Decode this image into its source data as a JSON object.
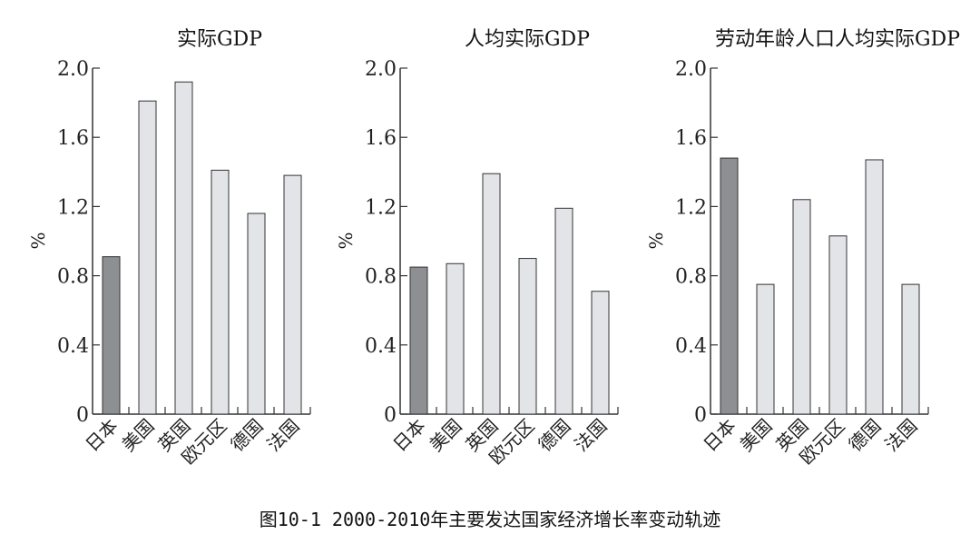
{
  "caption": "图10-1 2000-2010年主要发达国家经济增长率变动轨迹",
  "colors": {
    "japan": "#8e8f93",
    "others": "#e3e4e8",
    "outline": "#333333"
  },
  "chart_data": [
    {
      "type": "bar",
      "title": "实际GDP",
      "ylabel": "%",
      "ylim": [
        0,
        2.0
      ],
      "yticks": [
        "0",
        "0.4",
        "0.8",
        "1.2",
        "1.6",
        "2.0"
      ],
      "categories": [
        "日本",
        "美国",
        "英国",
        "欧元区",
        "德国",
        "法国"
      ],
      "values": [
        0.91,
        1.81,
        1.92,
        1.41,
        1.16,
        1.38
      ]
    },
    {
      "type": "bar",
      "title": "人均实际GDP",
      "ylabel": "%",
      "ylim": [
        0,
        2.0
      ],
      "yticks": [
        "0",
        "0.4",
        "0.8",
        "1.2",
        "1.6",
        "2.0"
      ],
      "categories": [
        "日本",
        "美国",
        "英国",
        "欧元区",
        "德国",
        "法国"
      ],
      "values": [
        0.85,
        0.87,
        1.39,
        0.9,
        1.19,
        0.71
      ]
    },
    {
      "type": "bar",
      "title": "劳动年龄人口人均实际GDP",
      "ylabel": "%",
      "ylim": [
        0,
        2.0
      ],
      "yticks": [
        "0",
        "0.4",
        "0.8",
        "1.2",
        "1.6",
        "2.0"
      ],
      "categories": [
        "日本",
        "美国",
        "英国",
        "欧元区",
        "德国",
        "法国"
      ],
      "values": [
        1.48,
        0.75,
        1.24,
        1.03,
        1.47,
        0.75
      ]
    }
  ]
}
